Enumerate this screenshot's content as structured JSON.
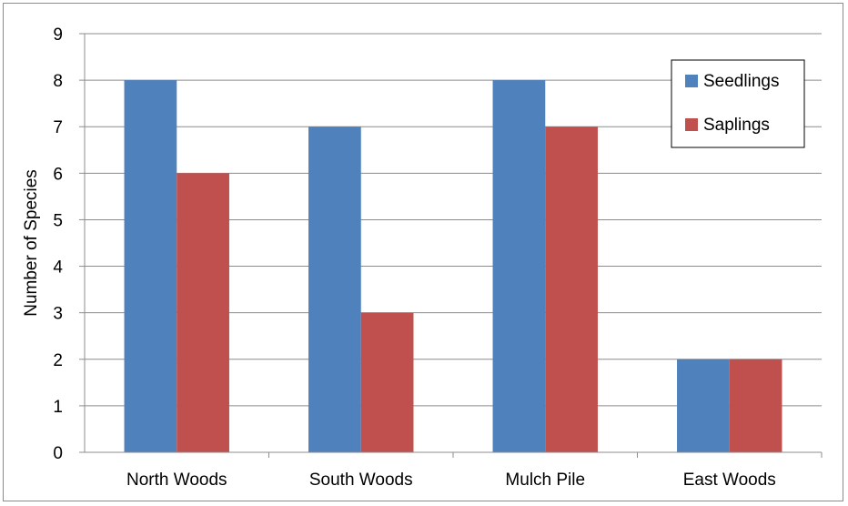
{
  "chart_data": {
    "type": "bar",
    "title": "",
    "xlabel": "",
    "ylabel": "Number of Species",
    "categories": [
      "North Woods",
      "South Woods",
      "Mulch Pile",
      "East Woods"
    ],
    "series": [
      {
        "name": "Seedlings",
        "color": "#4f81bd",
        "values": [
          8,
          7,
          8,
          2
        ]
      },
      {
        "name": "Saplings",
        "color": "#c0504d",
        "values": [
          6,
          3,
          7,
          2
        ]
      }
    ],
    "ylim": [
      0,
      9
    ],
    "yticks": [
      "0",
      "1",
      "2",
      "3",
      "4",
      "5",
      "6",
      "7",
      "8",
      "9"
    ],
    "grid": true,
    "legend_position": "top-right"
  }
}
